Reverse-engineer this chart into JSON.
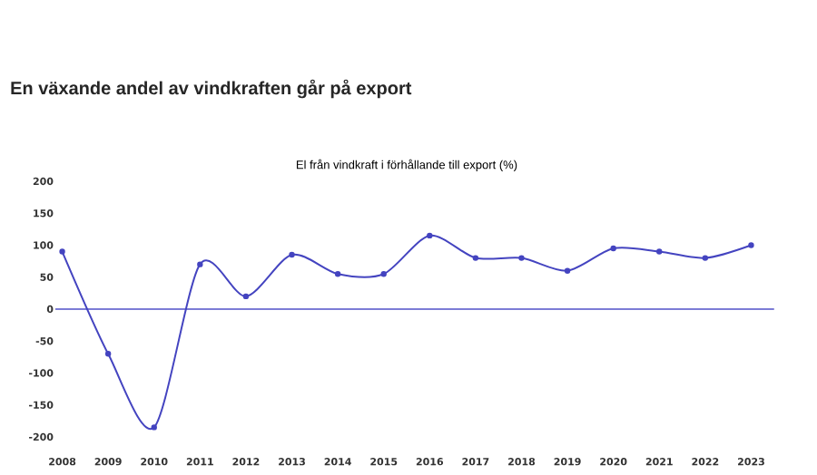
{
  "chart_data": {
    "type": "line",
    "title": "En växande andel av vindkraften går på export",
    "subtitle": "El från vindkraft i förhållande till export (%)",
    "categories": [
      "2008",
      "2009",
      "2010",
      "2011",
      "2012",
      "2013",
      "2014",
      "2015",
      "2016",
      "2017",
      "2018",
      "2019",
      "2020",
      "2021",
      "2022",
      "2023"
    ],
    "series": [
      {
        "color": "#4444c0",
        "values": [
          90,
          -70,
          -185,
          70,
          20,
          85,
          55,
          55,
          115,
          80,
          80,
          60,
          95,
          90,
          80,
          100
        ]
      }
    ],
    "ylim": [
      -200,
      200
    ],
    "yticks": [
      -200,
      -150,
      -100,
      -50,
      0,
      50,
      100,
      150,
      200
    ],
    "ref_lines": [
      {
        "axis": "y",
        "value": 0,
        "color": "#5050c8"
      }
    ],
    "marker": "circle",
    "grid": false
  }
}
